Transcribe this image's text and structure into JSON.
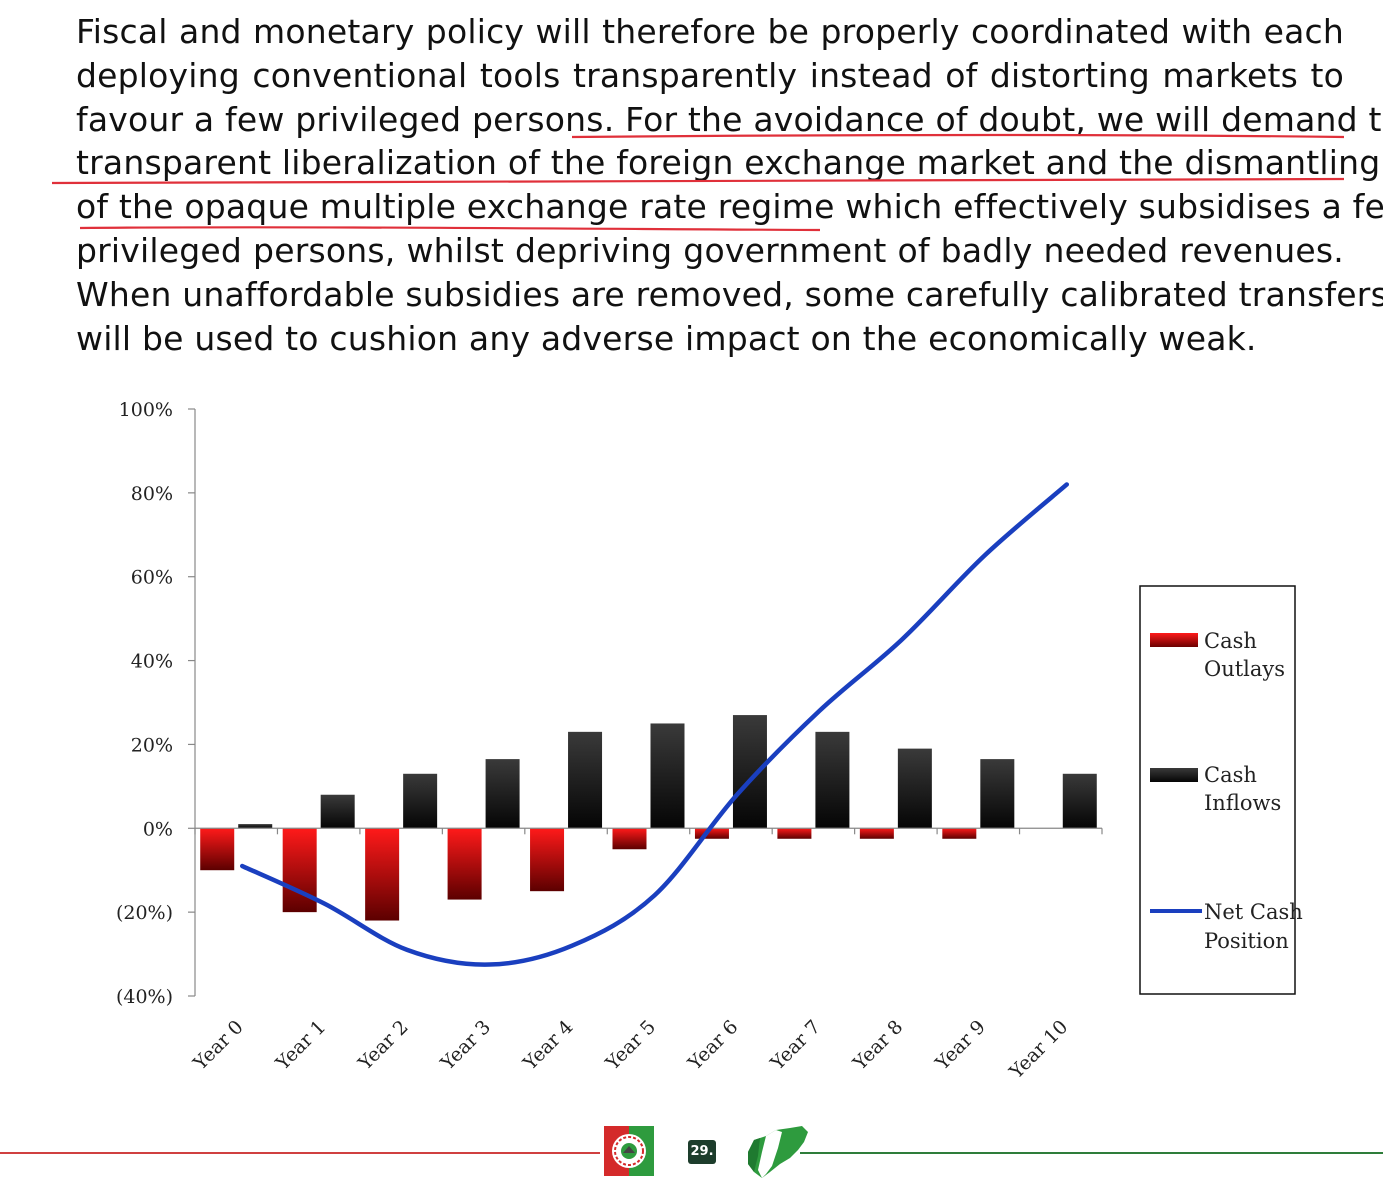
{
  "paragraph": {
    "lines": [
      "Fiscal and monetary policy will therefore be properly coordinated with each",
      "deploying conventional tools transparently instead of distorting markets to",
      "favour a few privileged persons. For the avoidance of doubt, we will demand the",
      "transparent  liberalization of the foreign exchange market and the dismantling",
      "of the  opaque multiple exchange rate regime which effectively subsidises a few",
      "privileged persons, whilst depriving government of badly needed revenues.",
      "When unaffordable subsidies are removed, some carefully calibrated transfers",
      "will be used to cushion any adverse impact on the economically weak."
    ]
  },
  "chart_data": {
    "type": "bar",
    "categories": [
      "Year 0",
      "Year 1",
      "Year 2",
      "Year 3",
      "Year 4",
      "Year 5",
      "Year 6",
      "Year 7",
      "Year 8",
      "Year 9",
      "Year 10"
    ],
    "ylim": [
      -40,
      100
    ],
    "yticks": [
      {
        "value": 100,
        "label": "100%"
      },
      {
        "value": 80,
        "label": "80%"
      },
      {
        "value": 60,
        "label": "60%"
      },
      {
        "value": 40,
        "label": "40%"
      },
      {
        "value": 20,
        "label": "20%"
      },
      {
        "value": 0,
        "label": "0%"
      },
      {
        "value": -20,
        "label": "(20%)"
      },
      {
        "value": -40,
        "label": "(40%)"
      }
    ],
    "series": [
      {
        "name": "Cash Outlays",
        "kind": "bar",
        "color": "#e00000",
        "values": [
          -10,
          -20,
          -22,
          -17,
          -15,
          -5,
          -2.5,
          -2.5,
          -2.5,
          -2.5,
          0
        ]
      },
      {
        "name": "Cash Inflows",
        "kind": "bar",
        "color": "#111111",
        "values": [
          1,
          8,
          13,
          16.5,
          23,
          25,
          27,
          23,
          19,
          16.5,
          13
        ]
      },
      {
        "name": "Net Cash Position",
        "kind": "line",
        "color": "#1a3fbf",
        "values": [
          -9,
          -18,
          -29,
          -32.5,
          -28,
          -16,
          8,
          28,
          45,
          65,
          82
        ]
      }
    ],
    "legend": {
      "placement": "right",
      "entries": [
        {
          "line1": "Cash",
          "line2": "Outlays"
        },
        {
          "line1": "Cash",
          "line2": "Inflows"
        },
        {
          "line1": "Net Cash",
          "line2": "Position"
        }
      ]
    },
    "grid": false
  },
  "footer": {
    "page_number": "29."
  },
  "colors": {
    "annotation_red": "#e0303a",
    "footer_red": "#d04040",
    "footer_green": "#2e7d3a"
  }
}
